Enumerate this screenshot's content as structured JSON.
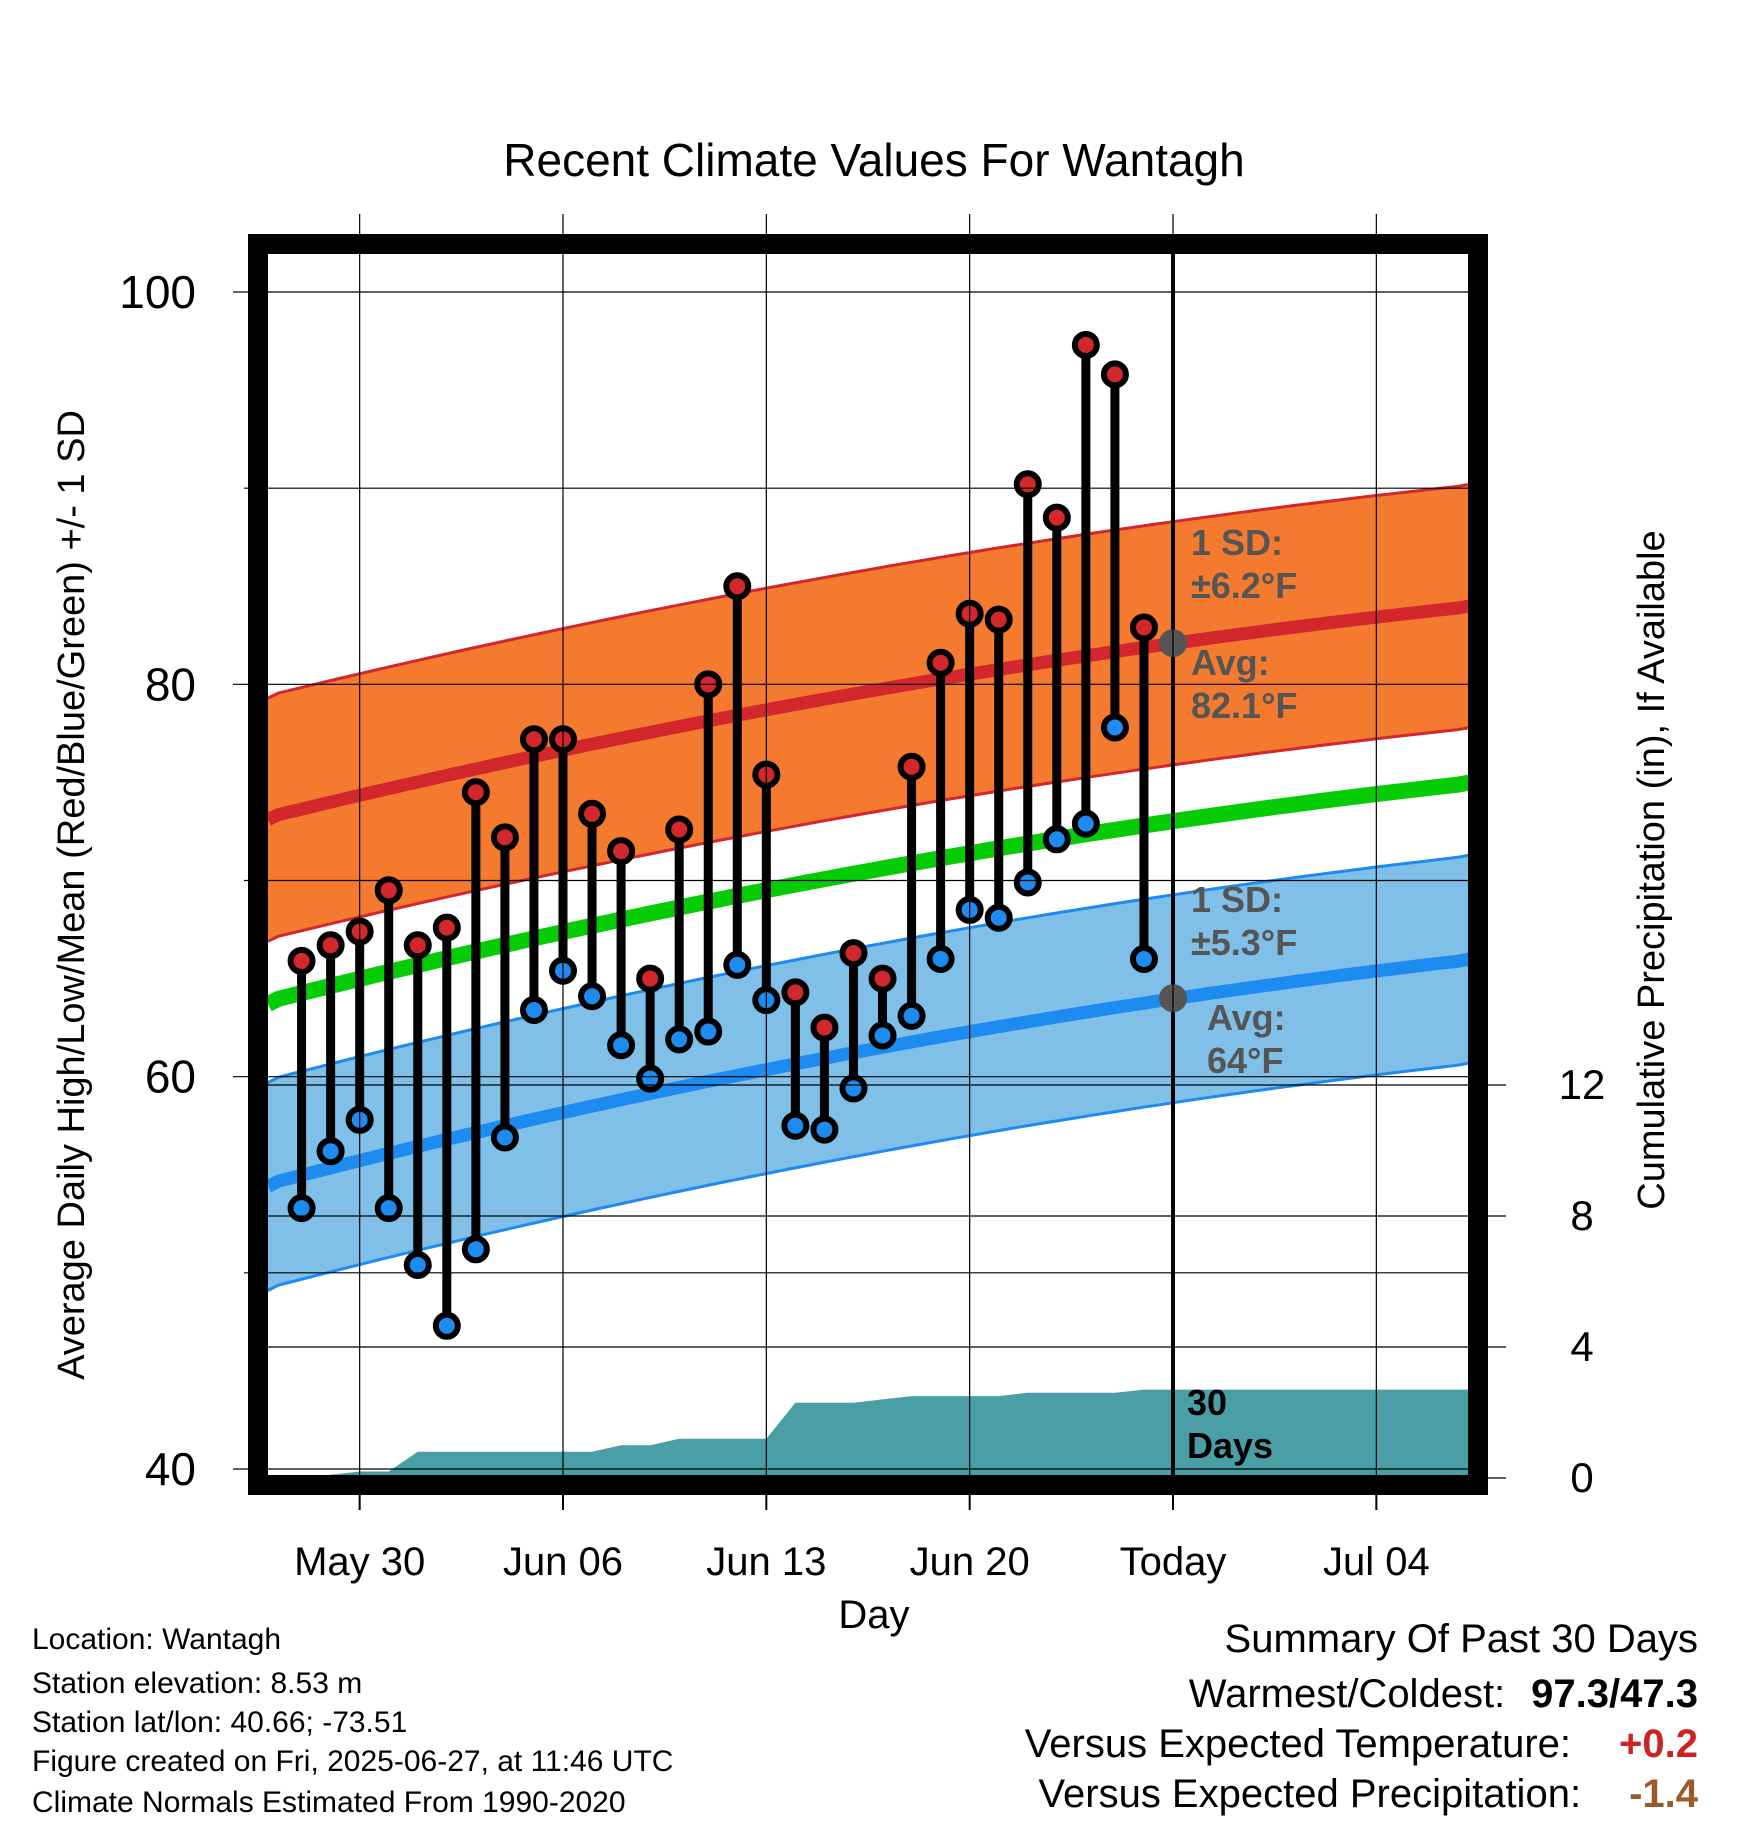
{
  "chart_data": {
    "type": "line",
    "title": "Recent Climate Values For Wantagh",
    "xlabel": "Day",
    "ylabel": "Average Daily High/Low/Mean (Red/Blue/Green) +/- 1 SD",
    "y2label": "Cumulative Precipitation (in), If Available",
    "ylim": [
      40,
      100
    ],
    "y_ticks": [
      40,
      60,
      80,
      100
    ],
    "y2lim": [
      0,
      24
    ],
    "y2_ticks": [
      0,
      4,
      8,
      12
    ],
    "x_ticks": [
      {
        "label": "May 30",
        "day": 3
      },
      {
        "label": "Jun 06",
        "day": 10
      },
      {
        "label": "Jun 13",
        "day": 17
      },
      {
        "label": "Jun 20",
        "day": 24
      },
      {
        "label": "Today",
        "day": 31
      },
      {
        "label": "Jul 04",
        "day": 38
      }
    ],
    "today_day": 31,
    "xlim": [
      -0.5,
      41.5
    ],
    "grid": true,
    "days": [
      1,
      2,
      3,
      4,
      5,
      6,
      7,
      8,
      9,
      10,
      11,
      12,
      13,
      14,
      15,
      16,
      17,
      18,
      19,
      20,
      21,
      22,
      23,
      24,
      25,
      26,
      27,
      28,
      29,
      30
    ],
    "highs": [
      65.9,
      66.7,
      67.4,
      69.5,
      66.7,
      67.6,
      74.5,
      72.2,
      77.2,
      77.2,
      73.4,
      71.5,
      65.0,
      72.6,
      80.0,
      85.0,
      75.4,
      64.3,
      62.5,
      66.3,
      65.0,
      75.8,
      81.1,
      83.6,
      83.3,
      90.2,
      88.5,
      97.3,
      95.8,
      82.9
    ],
    "lows": [
      53.3,
      56.2,
      57.8,
      53.3,
      50.4,
      47.3,
      51.2,
      56.9,
      63.4,
      65.4,
      64.1,
      61.6,
      59.9,
      61.9,
      62.3,
      65.7,
      63.9,
      57.5,
      57.3,
      59.4,
      62.1,
      63.1,
      66.0,
      68.5,
      68.1,
      69.9,
      72.1,
      72.9,
      77.8,
      66.0
    ],
    "normal_high_curve": {
      "days": [
        -0.5,
        41.5
      ],
      "start": 73.1,
      "end": 84.0
    },
    "normal_high_sd": 6.2,
    "normal_low_curve": {
      "days": [
        -0.5,
        41.5
      ],
      "start": 54.4,
      "end": 66.0
    },
    "normal_low_sd": 5.3,
    "normal_mean_curve": {
      "days": [
        -0.5,
        41.5
      ],
      "start": 63.7,
      "end": 75.0
    },
    "precip_cumulative": [
      0.0,
      0.1,
      0.2,
      0.2,
      0.8,
      0.8,
      0.8,
      0.8,
      0.8,
      0.8,
      0.8,
      1.0,
      1.0,
      1.2,
      1.2,
      1.2,
      1.2,
      2.3,
      2.3,
      2.3,
      2.4,
      2.5,
      2.5,
      2.5,
      2.5,
      2.6,
      2.6,
      2.6,
      2.6,
      2.7
    ],
    "precip_last": 2.7,
    "annotations": {
      "high_sd_l1": "1 SD:",
      "high_sd_l2": "±6.2°F",
      "high_avg_l1": "Avg:",
      "high_avg_l2": "82.1°F",
      "high_avg_value": 82.1,
      "low_sd_l1": "1 SD:",
      "low_sd_l2": "±5.3°F",
      "low_avg_l1": "Avg:",
      "low_avg_l2": "64°F",
      "low_avg_value": 64.0,
      "days_l1": "30",
      "days_l2": "Days"
    },
    "colors": {
      "high_band": "#f47a30",
      "high_line": "#d2272c",
      "low_band": "#7fbfe8",
      "low_line": "#1e8bf0",
      "mean_line": "#06cc06",
      "precip": "#4a9ea5",
      "high_dot": "#d2272c",
      "low_dot": "#1e8bf0",
      "avg_dot": "#555555",
      "annotation": "#555555"
    }
  },
  "meta": {
    "location": "Location: Wantagh",
    "elevation": "Station elevation: 8.53 m",
    "latlon": "Station lat/lon: 40.66; -73.51",
    "created": "Figure created on Fri, 2025-06-27, at 11:46 UTC",
    "normals": "Climate Normals Estimated From 1990-2020"
  },
  "summary": {
    "title": "Summary Of Past 30 Days",
    "warm_label": "Warmest/Coldest:",
    "warm_value": "97.3/47.3",
    "temp_label": "Versus Expected Temperature:",
    "temp_value": "+0.2",
    "temp_color": "#cc2222",
    "precip_label": "Versus Expected Precipitation:",
    "precip_value": "-1.4",
    "precip_color": "#9a5a2a"
  }
}
